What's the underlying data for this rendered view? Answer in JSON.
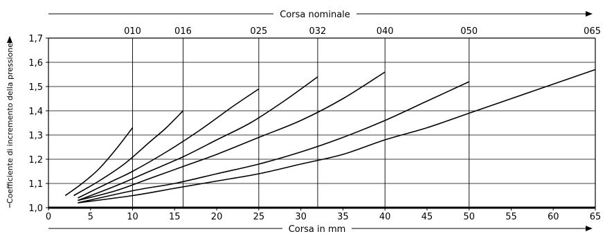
{
  "chart_data": {
    "type": "line",
    "top_axis_title": "Corsa nominale",
    "xlabel": "Corsa in mm",
    "ylabel": "Coefficiente di incremento della pressione",
    "xlim": [
      0,
      65
    ],
    "ylim": [
      1.0,
      1.7
    ],
    "x_ticks": [
      0,
      5,
      10,
      15,
      20,
      25,
      30,
      35,
      40,
      45,
      50,
      55,
      60,
      65
    ],
    "x_tick_labels": [
      "0",
      "5",
      "10",
      "15",
      "20",
      "25",
      "30",
      "35",
      "40",
      "45",
      "50",
      "55",
      "60",
      "65"
    ],
    "y_ticks": [
      1.0,
      1.1,
      1.2,
      1.3,
      1.4,
      1.5,
      1.6,
      1.7
    ],
    "y_tick_labels": [
      "1,0",
      "1,1",
      "1,2",
      "1,3",
      "1,4",
      "1,5",
      "1,6",
      "1,7"
    ],
    "nominal_strokes": [
      {
        "label": "010",
        "x": 10
      },
      {
        "label": "016",
        "x": 16
      },
      {
        "label": "025",
        "x": 25
      },
      {
        "label": "032",
        "x": 32
      },
      {
        "label": "040",
        "x": 40
      },
      {
        "label": "050",
        "x": 50
      },
      {
        "label": "065",
        "x": 65
      }
    ],
    "grid": "horizontal lines at y ticks; vertical lines at nominal strokes",
    "series": [
      {
        "x": [
          2,
          4,
          6,
          8,
          10
        ],
        "y": [
          1.05,
          1.1,
          1.16,
          1.24,
          1.33
        ]
      },
      {
        "x": [
          3,
          6,
          9,
          12,
          14,
          16
        ],
        "y": [
          1.05,
          1.11,
          1.18,
          1.27,
          1.33,
          1.4
        ]
      },
      {
        "x": [
          3.5,
          7,
          10,
          14,
          18,
          22,
          25
        ],
        "y": [
          1.04,
          1.1,
          1.15,
          1.23,
          1.32,
          1.42,
          1.49
        ]
      },
      {
        "x": [
          3.5,
          8,
          12,
          16,
          20,
          24,
          28,
          32
        ],
        "y": [
          1.03,
          1.09,
          1.15,
          1.21,
          1.28,
          1.35,
          1.44,
          1.54
        ]
      },
      {
        "x": [
          3.5,
          8,
          12,
          16,
          20,
          25,
          30,
          35,
          40
        ],
        "y": [
          1.03,
          1.07,
          1.12,
          1.17,
          1.22,
          1.29,
          1.36,
          1.45,
          1.56
        ]
      },
      {
        "x": [
          3.5,
          10,
          15,
          20,
          25,
          30,
          35,
          40,
          45,
          50
        ],
        "y": [
          1.02,
          1.07,
          1.1,
          1.14,
          1.18,
          1.23,
          1.29,
          1.36,
          1.44,
          1.52
        ]
      },
      {
        "x": [
          3.5,
          10,
          15,
          20,
          25,
          30,
          35,
          40,
          45,
          50,
          55,
          60,
          65
        ],
        "y": [
          1.02,
          1.05,
          1.08,
          1.11,
          1.14,
          1.18,
          1.22,
          1.28,
          1.33,
          1.39,
          1.45,
          1.51,
          1.57
        ]
      }
    ]
  }
}
